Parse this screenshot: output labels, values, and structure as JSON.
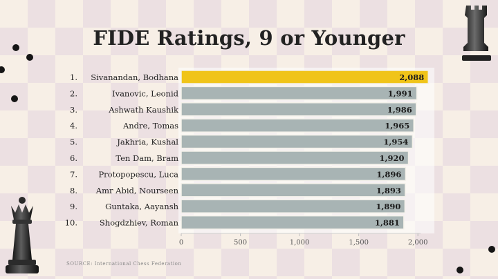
{
  "chart_data": {
    "type": "bar",
    "orientation": "horizontal",
    "title": "FIDE Ratings, 9 or Younger",
    "ranks": [
      "1.",
      "2.",
      "3.",
      "4.",
      "5.",
      "6.",
      "7.",
      "8.",
      "9.",
      "10."
    ],
    "categories": [
      "Sivanandan, Bodhana",
      "Ivanovic, Leonid",
      "Ashwath Kaushik",
      "Andre, Tomas",
      "Jakhria, Kushal",
      "Ten Dam, Bram",
      "Protopopescu, Luca",
      "Amr Abid, Nourseen",
      "Guntaka, Aayansh",
      "Shogdzhiev, Roman"
    ],
    "values": [
      2088,
      1991,
      1986,
      1965,
      1954,
      1920,
      1896,
      1893,
      1890,
      1881
    ],
    "value_labels": [
      "2,088",
      "1,991",
      "1,986",
      "1,965",
      "1,954",
      "1,920",
      "1,896",
      "1,893",
      "1,890",
      "1,881"
    ],
    "xlim": [
      0,
      2100
    ],
    "x_ticks": [
      0,
      500,
      1000,
      1500,
      2000
    ],
    "x_tick_labels": [
      "0",
      "500",
      "1,000",
      "1,500",
      "2,000"
    ],
    "xlabel": "",
    "ylabel": "",
    "grid": false,
    "legend": "none",
    "colors": {
      "highlight": "#f0c419",
      "bar": "#a8b4b4",
      "bar_border": "#f4f1ea"
    }
  },
  "source": "SOURCE: International Chess Federation",
  "decorations": {
    "pieces": [
      "rook-piece-icon",
      "queen-piece-icon"
    ]
  }
}
